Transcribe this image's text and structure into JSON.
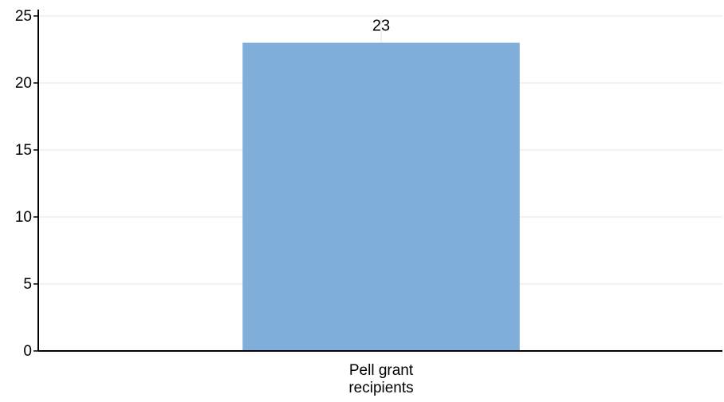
{
  "chart_data": {
    "type": "bar",
    "categories": [
      [
        "Pell grant",
        "recipients"
      ]
    ],
    "values": [
      23
    ],
    "data_labels": [
      "23"
    ],
    "title": "",
    "xlabel": "",
    "ylabel": "",
    "ylim": [
      0,
      25
    ],
    "yticks": [
      0,
      5,
      10,
      15,
      20,
      25
    ],
    "ytick_labels": [
      "0",
      "5",
      "10",
      "15",
      "20",
      "25"
    ],
    "grid": true,
    "legend": "none",
    "colors": {
      "bar": "#7faedb",
      "grid": "#e6e6e6",
      "axis": "#000000"
    }
  }
}
